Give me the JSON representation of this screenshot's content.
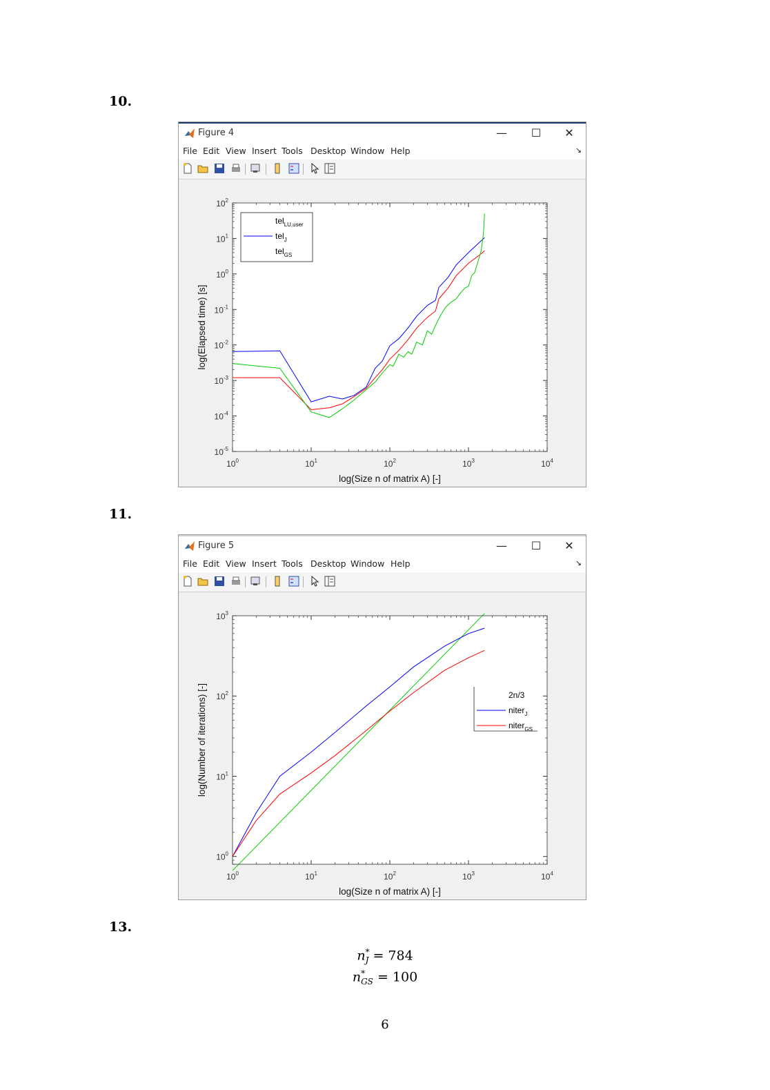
{
  "sections": {
    "s10": "10.",
    "s11": "11.",
    "s13": "13."
  },
  "figure4": {
    "title": "Figure 4",
    "menu": [
      "File",
      "Edit",
      "View",
      "Insert",
      "Tools",
      "Desktop",
      "Window",
      "Help"
    ],
    "window_controls": {
      "minimize": "—",
      "maximize": "☐",
      "close": "✕"
    },
    "colors": {
      "blue": "#0000ff",
      "red": "#ff0000",
      "green": "#00cc00"
    },
    "chart_data": {
      "type": "line",
      "xlabel": "log(Size n of matrix A) [-]",
      "ylabel": "log(Elapsed time) [s]",
      "xscale": "log",
      "yscale": "log",
      "xlim": [
        1,
        10000
      ],
      "ylim": [
        1e-05,
        100
      ],
      "xticks": [
        {
          "value": 1,
          "base": "10",
          "exp": "0"
        },
        {
          "value": 10,
          "base": "10",
          "exp": "1"
        },
        {
          "value": 100,
          "base": "10",
          "exp": "2"
        },
        {
          "value": 1000,
          "base": "10",
          "exp": "3"
        },
        {
          "value": 10000,
          "base": "10",
          "exp": "4"
        }
      ],
      "yticks": [
        {
          "value": 1e-05,
          "base": "10",
          "exp": "-5"
        },
        {
          "value": 0.0001,
          "base": "10",
          "exp": "-4"
        },
        {
          "value": 0.001,
          "base": "10",
          "exp": "-3"
        },
        {
          "value": 0.01,
          "base": "10",
          "exp": "-2"
        },
        {
          "value": 0.1,
          "base": "10",
          "exp": "-1"
        },
        {
          "value": 1,
          "base": "10",
          "exp": "0"
        },
        {
          "value": 10,
          "base": "10",
          "exp": "1"
        },
        {
          "value": 100,
          "base": "10",
          "exp": "2"
        }
      ],
      "legend_position": "top-left",
      "legend": [
        {
          "base": "tel",
          "sub": "LU,user",
          "color": "none"
        },
        {
          "base": "tel",
          "sub": "J",
          "color": "#0000ff"
        },
        {
          "base": "tel",
          "sub": "GS",
          "color": "none"
        }
      ],
      "series": [
        {
          "key": "J",
          "color": "#0000ff",
          "x": [
            1,
            4,
            10,
            17,
            25,
            35,
            50,
            65,
            80,
            100,
            130,
            170,
            220,
            300,
            380,
            420,
            550,
            700,
            1000,
            1400,
            1600
          ],
          "y": [
            0.0065,
            0.0068,
            0.00025,
            0.00036,
            0.0003,
            0.00038,
            0.00065,
            0.0022,
            0.0035,
            0.0095,
            0.015,
            0.03,
            0.065,
            0.13,
            0.18,
            0.42,
            0.8,
            1.8,
            4.0,
            8.0,
            10.5
          ]
        },
        {
          "key": "GS",
          "color": "#ff0000",
          "x": [
            1,
            4,
            10,
            17,
            25,
            35,
            50,
            65,
            80,
            100,
            130,
            170,
            220,
            300,
            380,
            420,
            550,
            700,
            1000,
            1400,
            1600
          ],
          "y": [
            0.0012,
            0.0012,
            0.00015,
            0.00017,
            0.00022,
            0.00035,
            0.0006,
            0.0012,
            0.002,
            0.004,
            0.007,
            0.014,
            0.03,
            0.06,
            0.09,
            0.2,
            0.4,
            0.9,
            2.0,
            3.5,
            4.5
          ]
        },
        {
          "key": "LU",
          "color": "#00cc00",
          "x": [
            1,
            4,
            10,
            17,
            25,
            35,
            50,
            65,
            80,
            100,
            110,
            130,
            150,
            170,
            190,
            220,
            260,
            300,
            340,
            380,
            420,
            460,
            520,
            600,
            700,
            800,
            900,
            1000,
            1100,
            1200,
            1300,
            1450,
            1550,
            1600
          ],
          "y": [
            0.003,
            0.0022,
            0.00013,
            9e-05,
            0.00016,
            0.00028,
            0.00055,
            0.0009,
            0.0016,
            0.0028,
            0.0025,
            0.0055,
            0.0045,
            0.0065,
            0.0055,
            0.012,
            0.01,
            0.025,
            0.02,
            0.035,
            0.055,
            0.08,
            0.12,
            0.16,
            0.2,
            0.3,
            0.4,
            0.45,
            0.9,
            1.1,
            2.0,
            4.5,
            14,
            50
          ]
        }
      ]
    }
  },
  "figure5": {
    "title": "Figure 5",
    "menu": [
      "File",
      "Edit",
      "View",
      "Insert",
      "Tools",
      "Desktop",
      "Window",
      "Help"
    ],
    "window_controls": {
      "minimize": "—",
      "maximize": "☐",
      "close": "✕"
    },
    "chart_data": {
      "type": "line",
      "xlabel": "log(Size n of matrix A) [-]",
      "ylabel": "log(Number of iterations) [-]",
      "xscale": "log",
      "yscale": "log",
      "xlim": [
        1,
        10000
      ],
      "ylim": [
        0.8,
        1000
      ],
      "xticks": [
        {
          "value": 1,
          "base": "10",
          "exp": "0"
        },
        {
          "value": 10,
          "base": "10",
          "exp": "1"
        },
        {
          "value": 100,
          "base": "10",
          "exp": "2"
        },
        {
          "value": 1000,
          "base": "10",
          "exp": "3"
        },
        {
          "value": 10000,
          "base": "10",
          "exp": "4"
        }
      ],
      "yticks": [
        {
          "value": 1,
          "base": "10",
          "exp": "0"
        },
        {
          "value": 10,
          "base": "10",
          "exp": "1"
        },
        {
          "value": 100,
          "base": "10",
          "exp": "2"
        },
        {
          "value": 1000,
          "base": "10",
          "exp": "3"
        }
      ],
      "legend_position": "right",
      "legend": [
        {
          "base": "2n/3",
          "sub": "",
          "color": "none"
        },
        {
          "base": "niter",
          "sub": "J",
          "color": "#0000ff"
        },
        {
          "base": "niter",
          "sub": "GS",
          "color": "#ff0000"
        }
      ],
      "series": [
        {
          "key": "2n/3",
          "color": "#00cc00",
          "x": [
            1,
            1600
          ],
          "y": [
            0.667,
            1067
          ]
        },
        {
          "key": "J",
          "color": "#0000ff",
          "x": [
            1,
            2,
            4,
            10,
            20,
            50,
            100,
            200,
            500,
            1000,
            1600
          ],
          "y": [
            1,
            3.5,
            10,
            20,
            35,
            75,
            130,
            230,
            420,
            600,
            700
          ]
        },
        {
          "key": "GS",
          "color": "#ff0000",
          "x": [
            1,
            2,
            4,
            10,
            20,
            50,
            100,
            200,
            500,
            1000,
            1600
          ],
          "y": [
            1,
            2.8,
            6,
            11,
            18,
            37,
            65,
            110,
            210,
            300,
            370
          ]
        }
      ]
    }
  },
  "results": {
    "nJ": {
      "var": "n",
      "sup": "*",
      "sub": "J",
      "value": "= 784"
    },
    "nGS": {
      "var": "n",
      "sup": "*",
      "sub": "GS",
      "value": "= 100"
    }
  },
  "page_number": "6"
}
